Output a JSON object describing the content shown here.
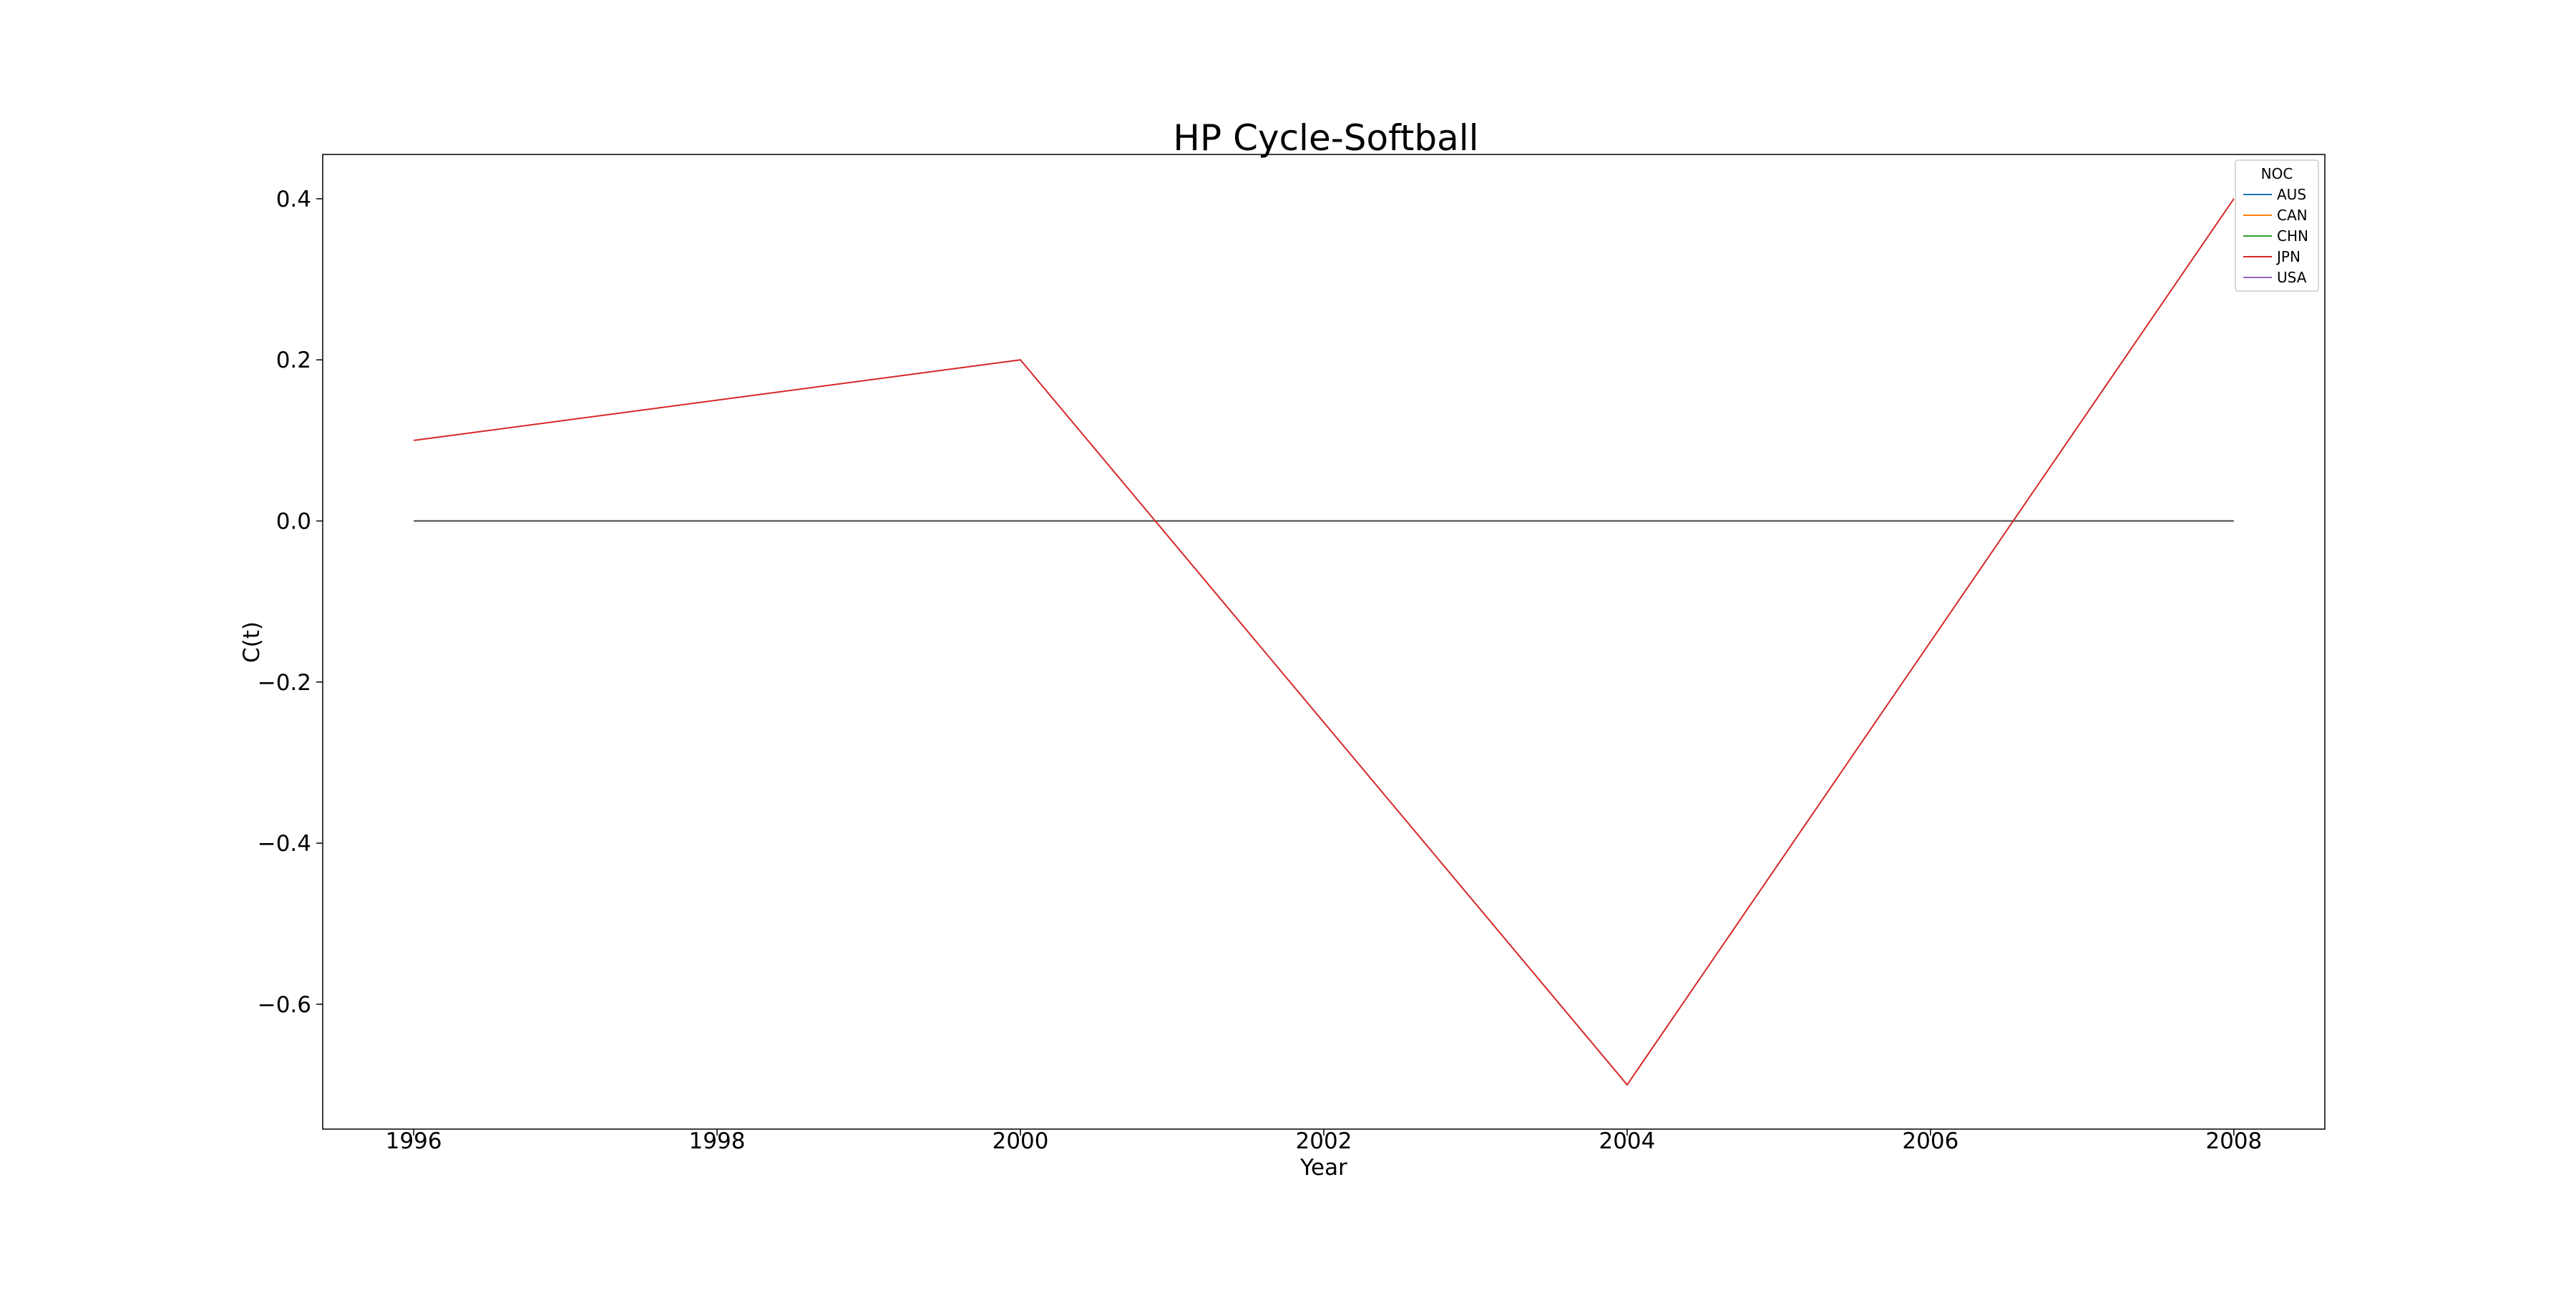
{
  "chart_data": {
    "type": "line",
    "title": "HP Cycle-Softball",
    "xlabel": "Year",
    "ylabel": "C(t)",
    "xlim": [
      1995.4,
      2008.6
    ],
    "ylim": [
      -0.755,
      0.455
    ],
    "xticks": [
      1996,
      1998,
      2000,
      2002,
      2004,
      2006,
      2008
    ],
    "xtick_labels": [
      "1996",
      "1998",
      "2000",
      "2002",
      "2004",
      "2006",
      "2008"
    ],
    "yticks": [
      -0.6,
      -0.4,
      -0.2,
      0.0,
      0.2,
      0.4
    ],
    "ytick_labels": [
      "−0.6",
      "−0.4",
      "−0.2",
      "0.0",
      "0.2",
      "0.4"
    ],
    "grid": false,
    "legend": {
      "title": "NOC",
      "placement": "top-right"
    },
    "series": [
      {
        "name": "AUS",
        "color": "#1f77b4",
        "x": [],
        "y": []
      },
      {
        "name": "CAN",
        "color": "#ff7f0e",
        "x": [],
        "y": []
      },
      {
        "name": "CHN",
        "color": "#2ca02c",
        "x": [],
        "y": []
      },
      {
        "name": "JPN",
        "color": "#d62728",
        "x": [
          1996,
          2000,
          2004,
          2008
        ],
        "y": [
          0.1,
          0.2,
          -0.7,
          0.4
        ]
      },
      {
        "name": "USA",
        "color": "#9467bd",
        "x": [],
        "y": []
      }
    ],
    "reference_line": {
      "color": "#444444",
      "x": [
        1996,
        2008
      ],
      "y": [
        0.0,
        0.0
      ]
    }
  }
}
